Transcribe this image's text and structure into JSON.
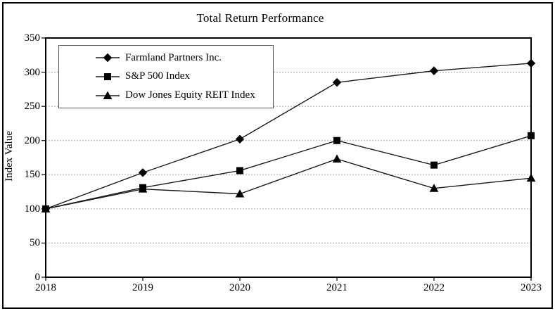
{
  "chart_data": {
    "type": "line",
    "title": "Total Return Performance",
    "ylabel": "Index Value",
    "xlabel": "",
    "ylim": [
      0,
      350
    ],
    "y_ticks": [
      0,
      50,
      100,
      150,
      200,
      250,
      300,
      350
    ],
    "categories": [
      "2018",
      "2019",
      "2020",
      "2021",
      "2022",
      "2023"
    ],
    "series": [
      {
        "name": "Farmland Partners Inc.",
        "marker": "diamond",
        "values": [
          100,
          153,
          202,
          285,
          302,
          313
        ]
      },
      {
        "name": "S&P 500 Index",
        "marker": "square",
        "values": [
          100,
          131,
          156,
          200,
          164,
          207
        ]
      },
      {
        "name": "Dow Jones Equity REIT Index",
        "marker": "triangle",
        "values": [
          100,
          129,
          122,
          173,
          130,
          145
        ]
      }
    ],
    "grid": "horizontal-dashed",
    "legend_position": "top-left-inside",
    "line_color": "#1a1a1a",
    "marker_color": "#000000",
    "grid_color": "#a9a9a9",
    "frame_color": "#000000"
  }
}
